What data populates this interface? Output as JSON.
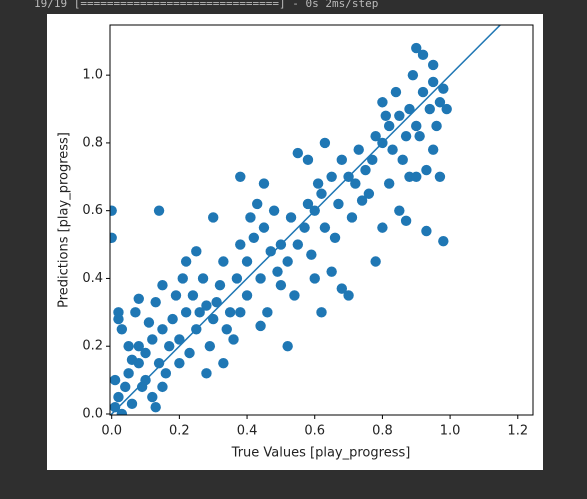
{
  "log_line": "19/19 [==============================] - 0s 2ms/step",
  "chart_data": {
    "type": "scatter",
    "xlabel": "True Values [play_progress]",
    "ylabel": "Predictions [play_progress]",
    "color": "#1f77b4",
    "diagonal_color": "#1f77b4",
    "xlim": [
      -0.005,
      1.245
    ],
    "ylim": [
      -0.003,
      1.148
    ],
    "xticks": [
      {
        "value": 0,
        "label": "0.0"
      },
      0.2,
      0.4,
      0.6,
      0.8,
      {
        "value": 1,
        "label": "1.0"
      },
      1.2
    ],
    "yticks": [
      {
        "value": 0,
        "label": "0.0"
      },
      0.2,
      0.4,
      0.6,
      0.8,
      {
        "value": 1,
        "label": "1.0"
      }
    ],
    "x": [
      0.01,
      0.02,
      0.03,
      0.04,
      0.05,
      0.06,
      0.08,
      0.1,
      0.12,
      0.02,
      0.03,
      0.07,
      0.1,
      0.12,
      0.13,
      0.15,
      0.08,
      0.11,
      0.13,
      0.15,
      0.05,
      0.09,
      0.14,
      0.01,
      0.06,
      0.0,
      0.0,
      0.14,
      0.02,
      0.08,
      0.15,
      0.17,
      0.18,
      0.2,
      0.22,
      0.24,
      0.25,
      0.27,
      0.28,
      0.3,
      0.32,
      0.33,
      0.35,
      0.2,
      0.22,
      0.25,
      0.3,
      0.19,
      0.23,
      0.29,
      0.34,
      0.16,
      0.21,
      0.26,
      0.31,
      0.33,
      0.28,
      0.37,
      0.38,
      0.4,
      0.42,
      0.44,
      0.45,
      0.47,
      0.48,
      0.5,
      0.52,
      0.53,
      0.55,
      0.38,
      0.4,
      0.43,
      0.46,
      0.5,
      0.52,
      0.55,
      0.45,
      0.38,
      0.36,
      0.44,
      0.49,
      0.54,
      0.41,
      0.57,
      0.58,
      0.6,
      0.62,
      0.63,
      0.65,
      0.67,
      0.68,
      0.7,
      0.72,
      0.73,
      0.75,
      0.6,
      0.62,
      0.65,
      0.68,
      0.7,
      0.58,
      0.63,
      0.59,
      0.66,
      0.71,
      0.74,
      0.61,
      0.77,
      0.78,
      0.8,
      0.82,
      0.83,
      0.85,
      0.87,
      0.88,
      0.9,
      0.92,
      0.94,
      0.95,
      0.97,
      0.98,
      0.8,
      0.84,
      0.78,
      0.8,
      0.85,
      0.88,
      0.9,
      0.93,
      0.98,
      0.97,
      0.95,
      0.9,
      0.92,
      0.89,
      0.76,
      0.82,
      0.86,
      0.91,
      0.96,
      0.99,
      0.95,
      0.81,
      0.87,
      0.93
    ],
    "values": [
      0.02,
      0.05,
      0.0,
      0.08,
      0.12,
      0.03,
      0.15,
      0.18,
      0.22,
      0.28,
      0.25,
      0.3,
      0.1,
      0.05,
      0.02,
      0.08,
      0.2,
      0.27,
      0.33,
      0.25,
      0.2,
      0.08,
      0.15,
      0.1,
      0.16,
      0.6,
      0.52,
      0.6,
      0.3,
      0.34,
      0.38,
      0.2,
      0.28,
      0.22,
      0.3,
      0.35,
      0.25,
      0.4,
      0.32,
      0.28,
      0.38,
      0.45,
      0.3,
      0.15,
      0.45,
      0.48,
      0.58,
      0.35,
      0.18,
      0.2,
      0.25,
      0.12,
      0.4,
      0.3,
      0.33,
      0.15,
      0.12,
      0.4,
      0.5,
      0.45,
      0.52,
      0.4,
      0.55,
      0.48,
      0.6,
      0.5,
      0.45,
      0.58,
      0.5,
      0.3,
      0.35,
      0.62,
      0.3,
      0.38,
      0.2,
      0.77,
      0.68,
      0.7,
      0.22,
      0.26,
      0.42,
      0.35,
      0.58,
      0.55,
      0.62,
      0.6,
      0.65,
      0.55,
      0.7,
      0.62,
      0.75,
      0.7,
      0.68,
      0.78,
      0.72,
      0.4,
      0.3,
      0.42,
      0.37,
      0.35,
      0.75,
      0.8,
      0.47,
      0.52,
      0.58,
      0.63,
      0.68,
      0.75,
      0.82,
      0.8,
      0.85,
      0.78,
      0.88,
      0.82,
      0.9,
      0.85,
      0.95,
      0.9,
      0.98,
      0.92,
      0.96,
      0.92,
      0.95,
      0.45,
      0.55,
      0.6,
      0.7,
      0.7,
      0.54,
      0.51,
      0.7,
      0.78,
      1.08,
      1.06,
      1.0,
      0.65,
      0.68,
      0.75,
      0.82,
      0.85,
      0.9,
      1.03,
      0.88,
      0.57,
      0.72
    ]
  }
}
